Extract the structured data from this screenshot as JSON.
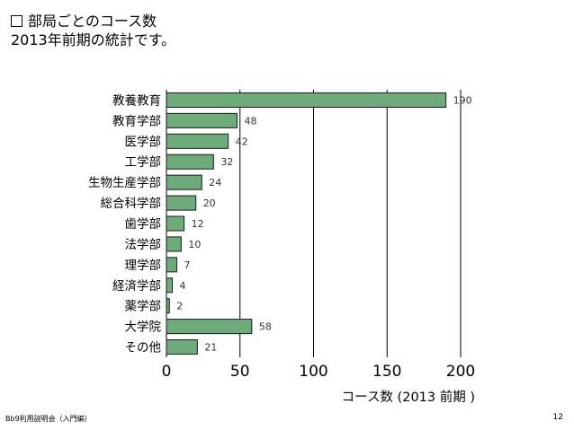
{
  "slide": {
    "heading_line1": "部局ごとのコース数",
    "heading_line2": "2013年前期の統計です。",
    "footer_left": "Bb9利用説明会（入門編）",
    "page_number": "12"
  },
  "chart_data": {
    "type": "bar",
    "orientation": "horizontal",
    "categories": [
      "教養教育",
      "教育学部",
      "医学部",
      "工学部",
      "生物生産学部",
      "総合科学部",
      "歯学部",
      "法学部",
      "理学部",
      "経済学部",
      "薬学部",
      "大学院",
      "その他"
    ],
    "values": [
      190,
      48,
      42,
      32,
      24,
      20,
      12,
      10,
      7,
      4,
      2,
      58,
      21
    ],
    "value_labels": [
      "190",
      "48",
      "42",
      "32",
      "24",
      "20",
      "12",
      "10",
      "7",
      "4",
      "2",
      "58",
      "21"
    ],
    "title": "",
    "xlabel": "コース数 (2013 前期 )",
    "ylabel": "",
    "xlim": [
      0,
      200
    ],
    "xticks": [
      0,
      50,
      100,
      150,
      200
    ],
    "grid": "vertical",
    "bar_color": "#6eab7a",
    "bar_edge_color": "#1a1a1a"
  }
}
